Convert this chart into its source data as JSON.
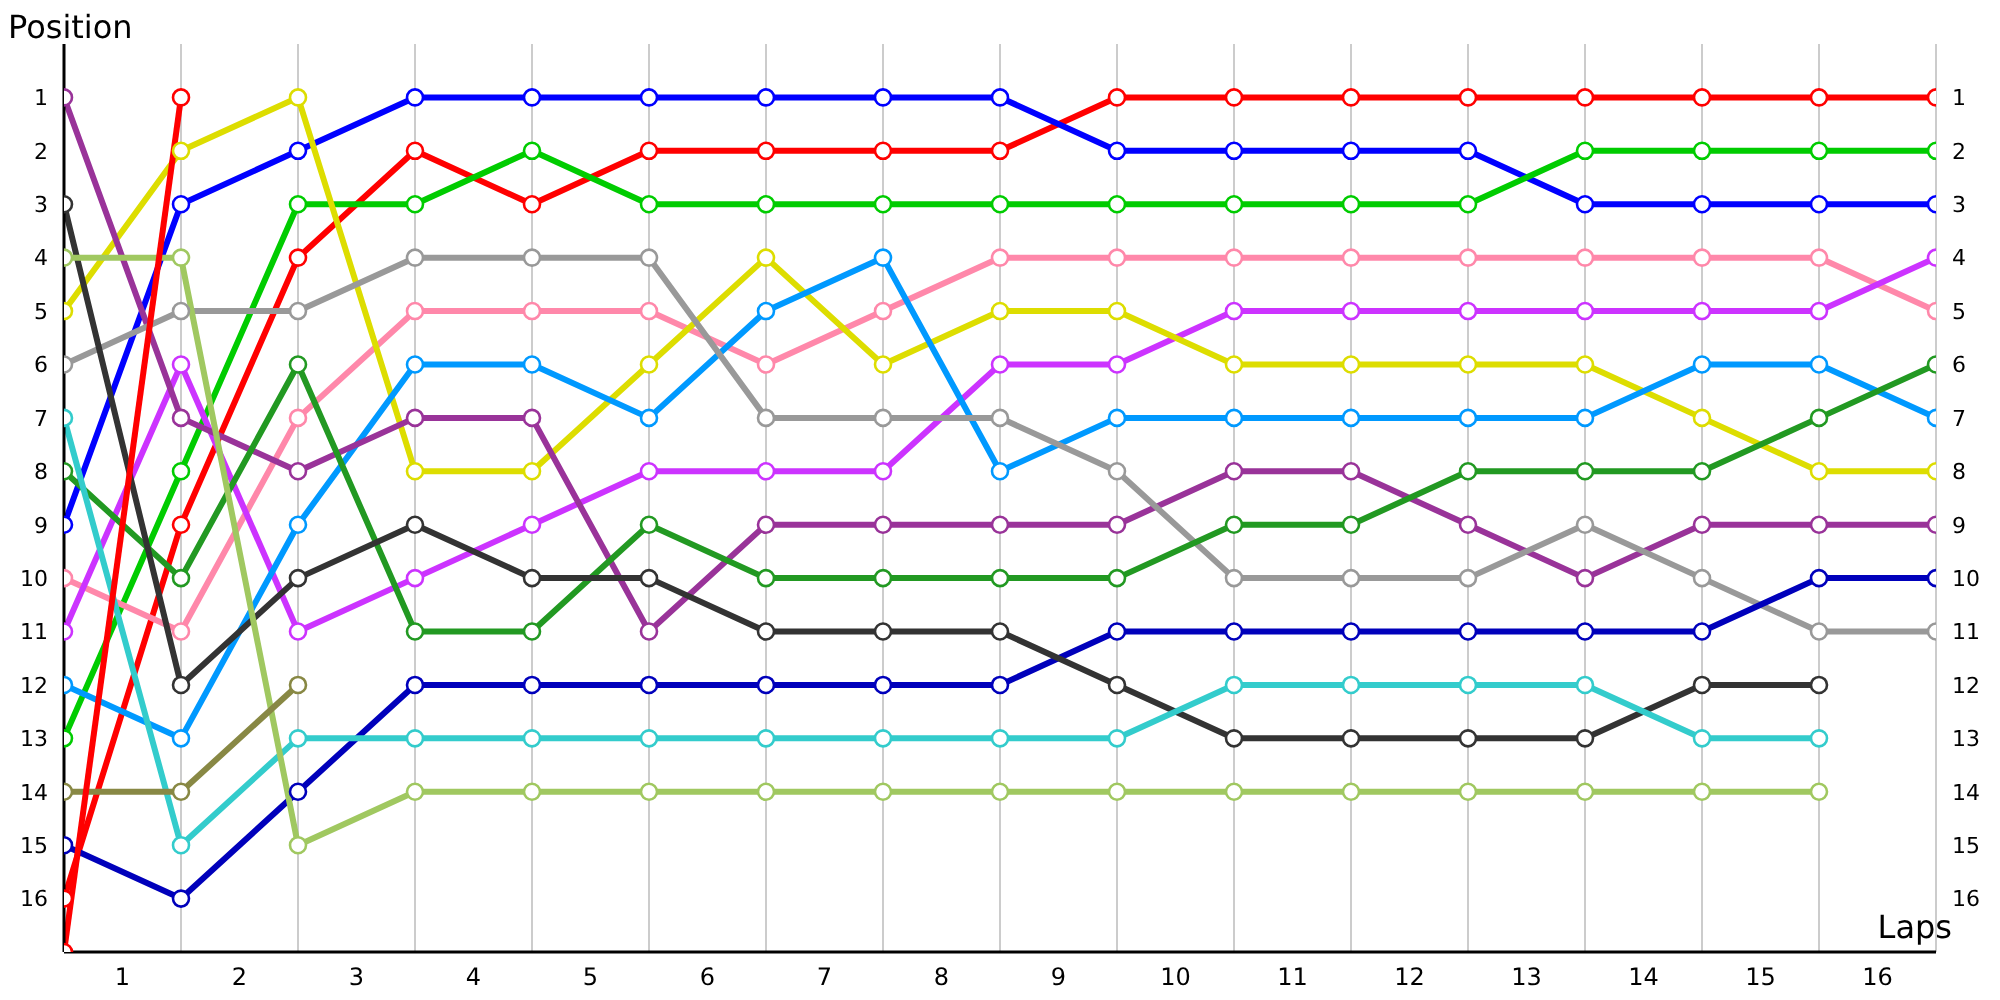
{
  "chart_data": {
    "type": "line",
    "xlabel": "Laps",
    "ylabel": "Position",
    "x": [
      0,
      1,
      2,
      3,
      4,
      5,
      6,
      7,
      8,
      9,
      10,
      11,
      12,
      13,
      14,
      15,
      16
    ],
    "xlim": [
      0,
      16
    ],
    "xticks": [
      {
        "value": 0,
        "label": null
      },
      {
        "value": 0.5,
        "label": "1"
      },
      {
        "value": 1,
        "label": null
      },
      {
        "value": 1.5,
        "label": "2"
      },
      {
        "value": 2,
        "label": null
      },
      {
        "value": 2.5,
        "label": "3"
      },
      {
        "value": 3,
        "label": null
      },
      {
        "value": 3.5,
        "label": "4"
      },
      {
        "value": 4,
        "label": null
      },
      {
        "value": 4.5,
        "label": "5"
      },
      {
        "value": 5,
        "label": null
      },
      {
        "value": 5.5,
        "label": "6"
      },
      {
        "value": 6,
        "label": null
      },
      {
        "value": 6.5,
        "label": "7"
      },
      {
        "value": 7,
        "label": null
      },
      {
        "value": 7.5,
        "label": "8"
      },
      {
        "value": 8,
        "label": null
      },
      {
        "value": 8.5,
        "label": "9"
      },
      {
        "value": 9,
        "label": null
      },
      {
        "value": 9.5,
        "label": "10"
      },
      {
        "value": 10,
        "label": null
      },
      {
        "value": 10.5,
        "label": "11"
      },
      {
        "value": 11,
        "label": null
      },
      {
        "value": 11.5,
        "label": "12"
      },
      {
        "value": 12,
        "label": null
      },
      {
        "value": 12.5,
        "label": "13"
      },
      {
        "value": 13,
        "label": null
      },
      {
        "value": 13.5,
        "label": "14"
      },
      {
        "value": 14,
        "label": null
      },
      {
        "value": 14.5,
        "label": "15"
      },
      {
        "value": 15,
        "label": null
      },
      {
        "value": 15.5,
        "label": "16"
      },
      {
        "value": 16,
        "label": null
      }
    ],
    "ylim": [
      17,
      0
    ],
    "yticks": [
      1,
      2,
      3,
      4,
      5,
      6,
      7,
      8,
      9,
      10,
      11,
      12,
      13,
      14,
      15,
      16
    ],
    "y2lim": [
      17,
      0
    ],
    "y2ticks": [
      1,
      2,
      3,
      4,
      5,
      6,
      7,
      8,
      9,
      10,
      11,
      12,
      13,
      14,
      15,
      16
    ],
    "grid": true,
    "legend": false,
    "marker": "circle",
    "line_style": "solid",
    "series": [
      {
        "color": "#ff0000",
        "values": [
          16,
          9,
          4,
          2,
          3,
          2,
          2,
          2,
          2,
          1,
          1,
          1,
          1,
          1,
          1,
          1,
          1
        ]
      },
      {
        "color": "#0000ff",
        "values": [
          9,
          3,
          2,
          1,
          1,
          1,
          1,
          1,
          1,
          2,
          2,
          2,
          2,
          3,
          3,
          3,
          3
        ]
      },
      {
        "color": "#00cc00",
        "values": [
          13,
          8,
          3,
          3,
          2,
          3,
          3,
          3,
          3,
          3,
          3,
          3,
          3,
          2,
          2,
          2,
          2
        ]
      },
      {
        "color": "#ff88aa",
        "values": [
          10,
          11,
          7,
          5,
          5,
          5,
          6,
          5,
          4,
          4,
          4,
          4,
          4,
          4,
          4,
          4,
          5
        ]
      },
      {
        "color": "#cc33ff",
        "values": [
          11,
          6,
          11,
          10,
          9,
          8,
          8,
          8,
          6,
          6,
          5,
          5,
          5,
          5,
          5,
          5,
          4
        ]
      },
      {
        "color": "#dddd00",
        "values": [
          5,
          2,
          1,
          8,
          8,
          6,
          4,
          6,
          5,
          5,
          6,
          6,
          6,
          6,
          7,
          8,
          8
        ]
      },
      {
        "color": "#0099ff",
        "values": [
          12,
          13,
          9,
          6,
          6,
          7,
          5,
          4,
          8,
          7,
          7,
          7,
          7,
          7,
          6,
          6,
          7
        ]
      },
      {
        "color": "#993399",
        "values": [
          1,
          7,
          8,
          7,
          7,
          11,
          9,
          9,
          9,
          9,
          8,
          8,
          9,
          10,
          9,
          9,
          9
        ]
      },
      {
        "color": "#999999",
        "values": [
          6,
          5,
          5,
          4,
          4,
          4,
          7,
          7,
          7,
          8,
          10,
          10,
          10,
          9,
          10,
          11,
          11
        ]
      },
      {
        "color": "#229922",
        "values": [
          8,
          10,
          6,
          11,
          11,
          9,
          10,
          10,
          10,
          10,
          9,
          9,
          8,
          8,
          8,
          7,
          6
        ]
      },
      {
        "color": "#0000bb",
        "values": [
          15,
          16,
          14,
          12,
          12,
          12,
          12,
          12,
          12,
          11,
          11,
          11,
          11,
          11,
          11,
          10,
          10
        ]
      },
      {
        "color": "#333333",
        "values": [
          3,
          12,
          10,
          9,
          10,
          10,
          11,
          11,
          11,
          12,
          13,
          13,
          13,
          13,
          12,
          12,
          null
        ]
      },
      {
        "color": "#33cccc",
        "values": [
          7,
          15,
          13,
          13,
          13,
          13,
          13,
          13,
          13,
          13,
          12,
          12,
          12,
          12,
          13,
          13,
          null
        ]
      },
      {
        "color": "#a0c860",
        "values": [
          4,
          4,
          15,
          14,
          14,
          14,
          14,
          14,
          14,
          14,
          14,
          14,
          14,
          14,
          14,
          14,
          null
        ]
      },
      {
        "color": "#888844",
        "values": [
          14,
          14,
          12,
          null,
          null,
          null,
          null,
          null,
          null,
          null,
          null,
          null,
          null,
          null,
          null,
          null,
          null
        ]
      },
      {
        "color": "#ff0000",
        "values": [
          17,
          1,
          null,
          null,
          null,
          null,
          null,
          null,
          null,
          null,
          null,
          null,
          null,
          null,
          null,
          null,
          null
        ]
      }
    ]
  }
}
